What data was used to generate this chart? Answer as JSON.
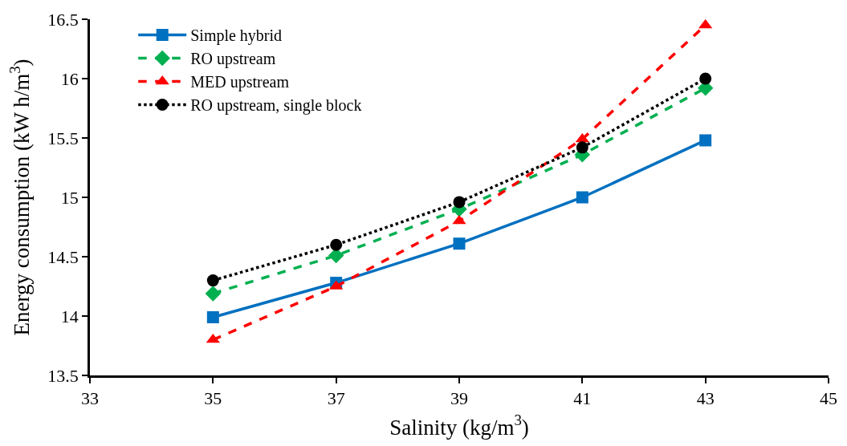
{
  "chart_data": {
    "type": "line",
    "xlabel": "Salinity (kg/m$^{3}$)",
    "ylabel": "Energy consumption (kW h/m$^{3}$)",
    "x": [
      35,
      37,
      39,
      41,
      43
    ],
    "series": [
      {
        "name": "Simple hybrid",
        "color": "#0070c0",
        "values": [
          13.99,
          14.28,
          14.61,
          15.0,
          15.48
        ],
        "marker": "square",
        "line_style": "solid"
      },
      {
        "name": "RO upstream",
        "color": "#00b050",
        "values": [
          14.19,
          14.51,
          14.9,
          15.36,
          15.92
        ],
        "marker": "diamond",
        "line_style": "dashed"
      },
      {
        "name": "MED upstream",
        "color": "#ff0000",
        "values": [
          13.8,
          14.25,
          14.8,
          15.49,
          16.45
        ],
        "marker": "triangle",
        "line_style": "dashed"
      },
      {
        "name": "RO upstream, single block",
        "color": "#000000",
        "values": [
          14.3,
          14.6,
          14.96,
          15.42,
          16.0
        ],
        "marker": "circle",
        "line_style": "dotted"
      }
    ],
    "xlim": [
      33,
      45
    ],
    "xticks": [
      33,
      35,
      37,
      39,
      41,
      43,
      45
    ],
    "ylim": [
      13.5,
      16.5
    ],
    "yticks": [
      13.5,
      14,
      14.5,
      15,
      15.5,
      16,
      16.5
    ],
    "legend": "top left"
  }
}
